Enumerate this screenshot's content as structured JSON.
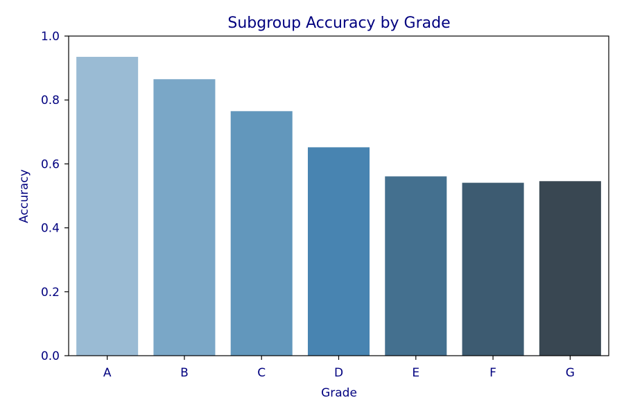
{
  "chart_data": {
    "type": "bar",
    "title": "Subgroup Accuracy by Grade",
    "xlabel": "Grade",
    "ylabel": "Accuracy",
    "categories": [
      "A",
      "B",
      "C",
      "D",
      "E",
      "F",
      "G"
    ],
    "values": [
      0.935,
      0.865,
      0.765,
      0.652,
      0.561,
      0.541,
      0.546
    ],
    "ylim": [
      0,
      1.0
    ],
    "yticks": [
      "0.0",
      "0.2",
      "0.4",
      "0.6",
      "0.8",
      "1.0"
    ],
    "grid": false,
    "bar_colors": [
      "#9abbd4",
      "#7aa7c7",
      "#6297bc",
      "#4884b1",
      "#44708f",
      "#3d5b71",
      "#394752"
    ],
    "text_color": "#00007f",
    "axis_color": "#000000"
  }
}
